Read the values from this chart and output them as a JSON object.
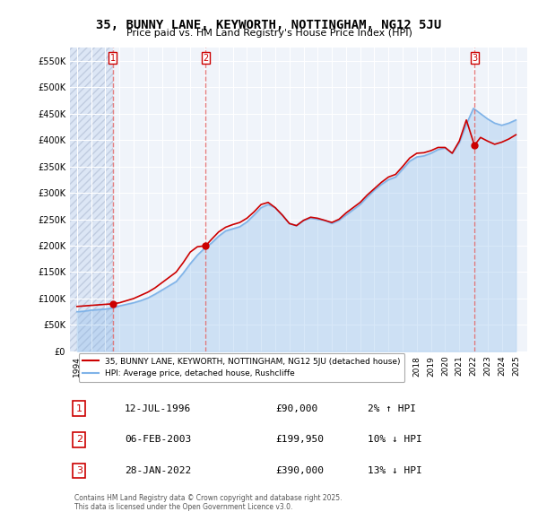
{
  "title": "35, BUNNY LANE, KEYWORTH, NOTTINGHAM, NG12 5JU",
  "subtitle": "Price paid vs. HM Land Registry's House Price Index (HPI)",
  "legend_label_red": "35, BUNNY LANE, KEYWORTH, NOTTINGHAM, NG12 5JU (detached house)",
  "legend_label_blue": "HPI: Average price, detached house, Rushcliffe",
  "footnote": "Contains HM Land Registry data © Crown copyright and database right 2025.\nThis data is licensed under the Open Government Licence v3.0.",
  "table": [
    {
      "num": 1,
      "date": "12-JUL-1996",
      "price": "£90,000",
      "hpi": "2% ↑ HPI"
    },
    {
      "num": 2,
      "date": "06-FEB-2003",
      "price": "£199,950",
      "hpi": "10% ↓ HPI"
    },
    {
      "num": 3,
      "date": "28-JAN-2022",
      "price": "£390,000",
      "hpi": "13% ↓ HPI"
    }
  ],
  "sale_years": [
    1996.53,
    2003.09,
    2022.07
  ],
  "sale_prices": [
    90000,
    199950,
    390000
  ],
  "ylim": [
    0,
    575000
  ],
  "yticks": [
    0,
    50000,
    100000,
    150000,
    200000,
    250000,
    300000,
    350000,
    400000,
    450000,
    500000,
    550000
  ],
  "xlim_start": 1993.5,
  "xlim_end": 2025.8,
  "bg_chart": "#f0f4fa",
  "bg_hatch": "#dce6f5",
  "grid_color": "#ffffff",
  "red_color": "#cc0000",
  "blue_color": "#7fb3e8",
  "dashed_red": "#e06060",
  "hpi_years": [
    1994,
    1994.5,
    1995,
    1995.5,
    1996,
    1996.5,
    1997,
    1997.5,
    1998,
    1998.5,
    1999,
    1999.5,
    2000,
    2000.5,
    2001,
    2001.5,
    2002,
    2002.5,
    2003,
    2003.5,
    2004,
    2004.5,
    2005,
    2005.5,
    2006,
    2006.5,
    2007,
    2007.5,
    2008,
    2008.5,
    2009,
    2009.5,
    2010,
    2010.5,
    2011,
    2011.5,
    2012,
    2012.5,
    2013,
    2013.5,
    2014,
    2014.5,
    2015,
    2015.5,
    2016,
    2016.5,
    2017,
    2017.5,
    2018,
    2018.5,
    2019,
    2019.5,
    2020,
    2020.5,
    2021,
    2021.5,
    2022,
    2022.5,
    2023,
    2023.5,
    2024,
    2024.5,
    2025
  ],
  "hpi_values": [
    75000,
    76000,
    78000,
    79000,
    80000,
    82000,
    86000,
    89000,
    92000,
    96000,
    101000,
    108000,
    116000,
    124000,
    132000,
    148000,
    166000,
    182000,
    195000,
    205000,
    218000,
    228000,
    232000,
    236000,
    245000,
    258000,
    272000,
    278000,
    272000,
    258000,
    242000,
    238000,
    248000,
    252000,
    250000,
    248000,
    242000,
    248000,
    258000,
    268000,
    278000,
    292000,
    305000,
    316000,
    325000,
    330000,
    345000,
    360000,
    368000,
    370000,
    375000,
    382000,
    385000,
    375000,
    395000,
    430000,
    460000,
    450000,
    440000,
    432000,
    428000,
    432000,
    438000
  ],
  "price_years": [
    1994,
    1994.5,
    1995,
    1995.5,
    1996,
    1996.53,
    1997,
    1997.5,
    1998,
    1998.5,
    1999,
    1999.5,
    2000,
    2000.5,
    2001,
    2001.5,
    2002,
    2002.5,
    2003.09,
    2003.5,
    2004,
    2004.5,
    2005,
    2005.5,
    2006,
    2006.5,
    2007,
    2007.5,
    2008,
    2008.5,
    2009,
    2009.5,
    2010,
    2010.5,
    2011,
    2011.5,
    2012,
    2012.5,
    2013,
    2013.5,
    2014,
    2014.5,
    2015,
    2015.5,
    2016,
    2016.5,
    2017,
    2017.5,
    2018,
    2018.5,
    2019,
    2019.5,
    2020,
    2020.5,
    2021,
    2021.5,
    2022.07,
    2022.5,
    2023,
    2023.5,
    2024,
    2024.5,
    2025
  ],
  "price_values": [
    85000,
    86000,
    87000,
    88000,
    89000,
    90000,
    92000,
    96000,
    100000,
    106000,
    112000,
    120000,
    130000,
    140000,
    150000,
    168000,
    188000,
    198000,
    199950,
    212000,
    226000,
    235000,
    240000,
    244000,
    252000,
    264000,
    278000,
    282000,
    272000,
    258000,
    242000,
    238000,
    248000,
    254000,
    252000,
    248000,
    244000,
    250000,
    262000,
    272000,
    282000,
    296000,
    308000,
    320000,
    330000,
    335000,
    350000,
    366000,
    375000,
    376000,
    380000,
    386000,
    386000,
    375000,
    398000,
    438000,
    390000,
    405000,
    398000,
    392000,
    396000,
    402000,
    410000
  ]
}
